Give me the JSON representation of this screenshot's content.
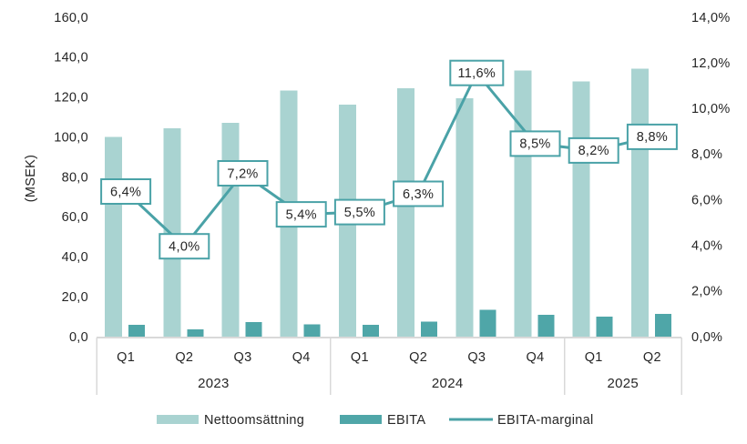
{
  "chart_data": {
    "type": "bar",
    "subtype": "grouped-bars-with-line-overlay",
    "title": "",
    "ylabel": "(MSEK)",
    "grid": false,
    "legend_position": "bottom",
    "categories": [
      "Q1",
      "Q2",
      "Q3",
      "Q4",
      "Q1",
      "Q2",
      "Q3",
      "Q4",
      "Q1",
      "Q2"
    ],
    "year_groups": [
      {
        "label": "2023",
        "span": 4
      },
      {
        "label": "2024",
        "span": 4
      },
      {
        "label": "2025",
        "span": 2
      }
    ],
    "axis_left": {
      "label": "(MSEK)",
      "min": 0,
      "max": 160,
      "step": 20,
      "tick_labels": [
        "160,0",
        "140,0",
        "120,0",
        "100,0",
        "80,0",
        "60,0",
        "40,0",
        "20,0",
        "0,0"
      ]
    },
    "axis_right": {
      "min": 0,
      "max": 14,
      "step": 2,
      "tick_labels": [
        "14,0%",
        "12,0%",
        "10,0%",
        "8,0%",
        "6,0%",
        "4,0%",
        "2,0%",
        "0,0%"
      ]
    },
    "series": [
      {
        "name": "Nettoomsättning",
        "slug": "nettoomsattning",
        "type": "bar",
        "axis": "left",
        "color": "#a9d3d1",
        "values": [
          100.4,
          104.8,
          107.5,
          123.8,
          116.8,
          124.8,
          119.8,
          133.7,
          128.3,
          134.6
        ]
      },
      {
        "name": "EBITA",
        "slug": "ebita",
        "type": "bar",
        "axis": "left",
        "color": "#4fa6a8",
        "values": [
          6.4,
          4.2,
          7.7,
          6.7,
          6.4,
          7.9,
          13.9,
          11.4,
          10.5,
          11.8
        ]
      },
      {
        "name": "EBITA-marginal",
        "slug": "ebita-marginal",
        "type": "line",
        "axis": "right",
        "color": "#4aa2a7",
        "values": [
          6.4,
          4.0,
          7.2,
          5.4,
          5.5,
          6.3,
          11.6,
          8.5,
          8.2,
          8.8
        ],
        "labels": [
          "6,4%",
          "4,0%",
          "7,2%",
          "5,4%",
          "5,5%",
          "6,3%",
          "11,6%",
          "8,5%",
          "8,2%",
          "8,8%"
        ]
      }
    ],
    "colors": {
      "bar_light": "#a9d3d1",
      "bar_dark": "#4fa6a8",
      "line": "#4aa2a7",
      "label_box_border": "#4aa2a7",
      "label_box_fill": "#ffffff",
      "axis_line": "#d9d9d9",
      "text": "#262626"
    }
  }
}
